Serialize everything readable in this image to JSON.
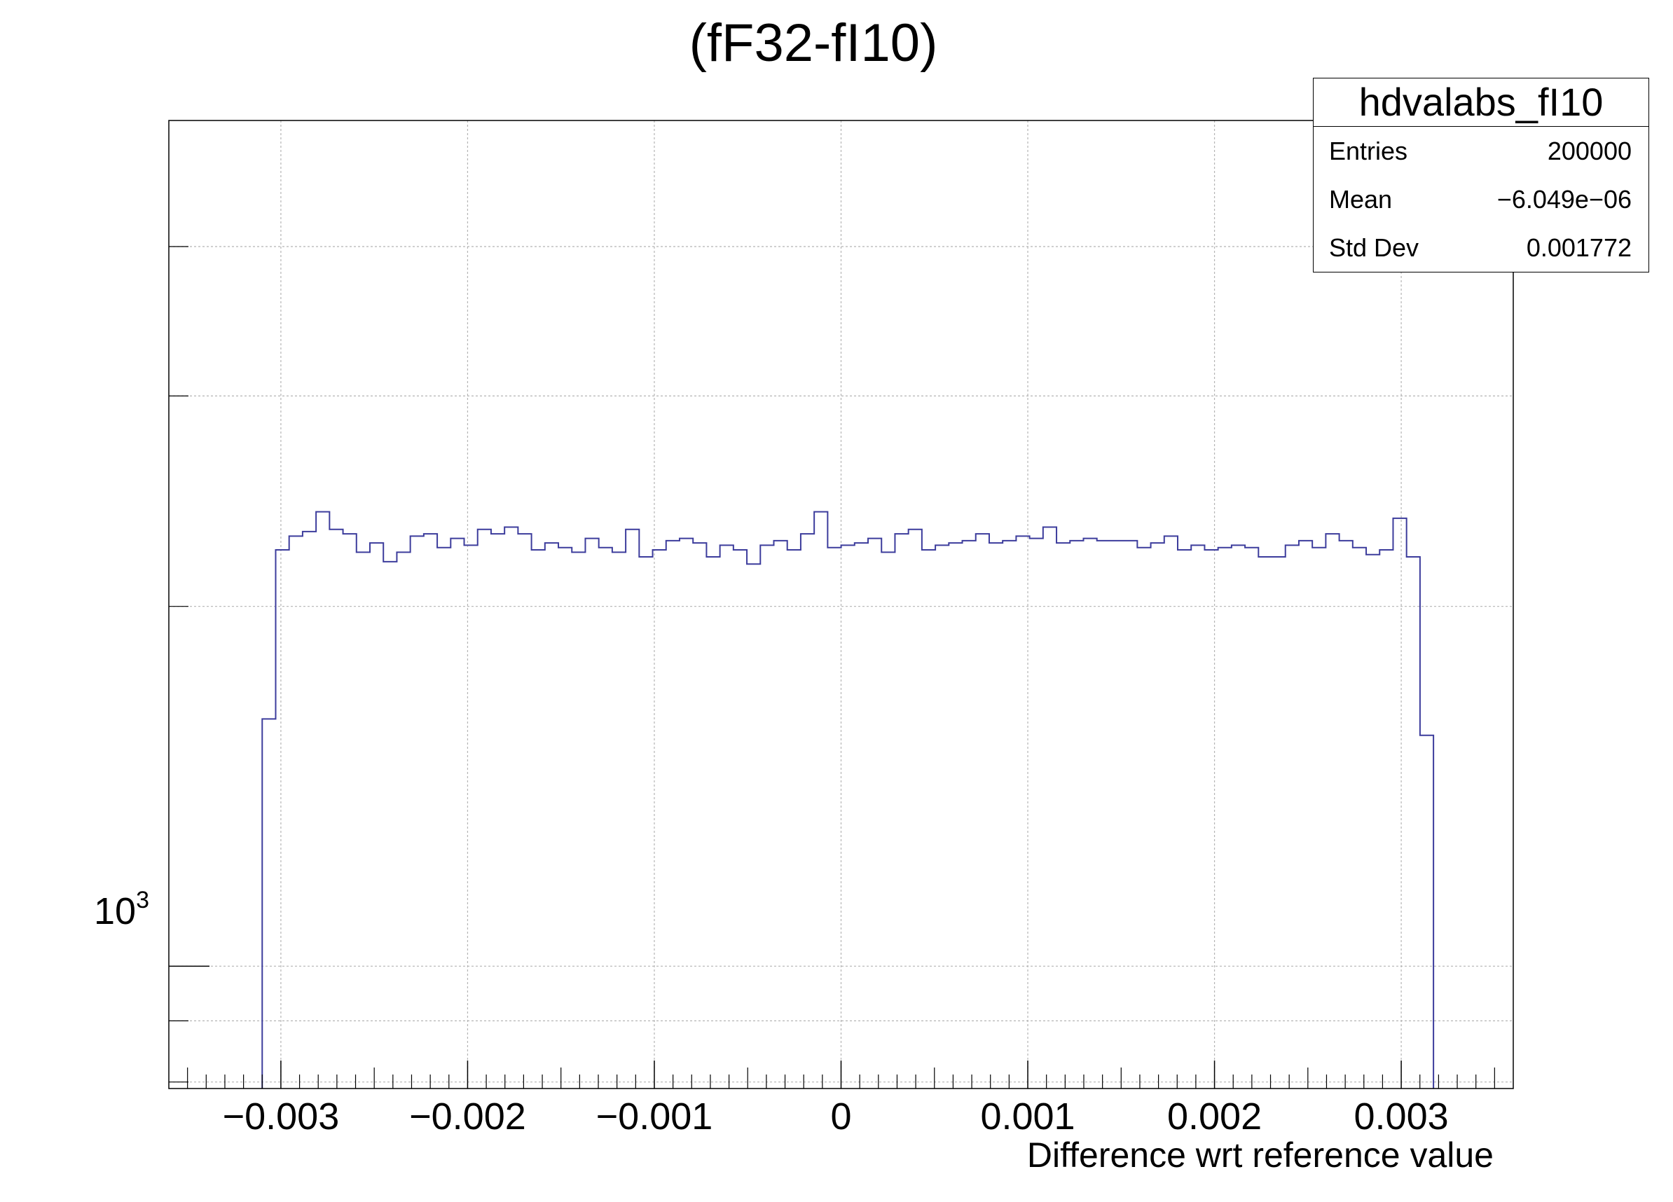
{
  "title": "(fF32-fI10)",
  "stats": {
    "name": "hdvalabs_fI10",
    "rows": [
      {
        "label": "Entries",
        "value": "200000"
      },
      {
        "label": "Mean",
        "value": "−6.049e−06"
      },
      {
        "label": "Std Dev",
        "value": "0.001772"
      }
    ]
  },
  "chart_data": {
    "type": "bar",
    "xlabel": "Difference wrt reference value",
    "ylabel": "",
    "yscale": "log",
    "xlim": [
      -0.0036,
      0.0036
    ],
    "ylim": [
      790,
      5100
    ],
    "grid": true,
    "line_color": "#3c3c9c",
    "x_ticks": [
      {
        "value": -0.003,
        "label": "−0.003"
      },
      {
        "value": -0.002,
        "label": "−0.002"
      },
      {
        "value": -0.001,
        "label": "−0.001"
      },
      {
        "value": 0,
        "label": "0"
      },
      {
        "value": 0.001,
        "label": "0.001"
      },
      {
        "value": 0.002,
        "label": "0.002"
      },
      {
        "value": 0.003,
        "label": "0.003"
      }
    ],
    "y_major_tick": {
      "value": 1000,
      "base": "10",
      "exp": "3"
    },
    "y_minor_ticks": [
      800,
      900,
      2000,
      3000,
      4000
    ],
    "bin_edges_start": -0.0031,
    "bin_width": 7.21e-05,
    "values": [
      1610,
      2230,
      2290,
      2310,
      2400,
      2320,
      2300,
      2220,
      2260,
      2180,
      2220,
      2290,
      2300,
      2240,
      2280,
      2250,
      2320,
      2300,
      2330,
      2300,
      2230,
      2260,
      2240,
      2220,
      2280,
      2240,
      2220,
      2320,
      2200,
      2230,
      2270,
      2280,
      2260,
      2200,
      2250,
      2230,
      2170,
      2250,
      2270,
      2230,
      2300,
      2400,
      2240,
      2250,
      2260,
      2280,
      2220,
      2300,
      2320,
      2230,
      2250,
      2260,
      2270,
      2300,
      2260,
      2270,
      2290,
      2280,
      2330,
      2260,
      2270,
      2280,
      2270,
      2270,
      2270,
      2240,
      2260,
      2290,
      2230,
      2250,
      2230,
      2240,
      2250,
      2240,
      2200,
      2200,
      2250,
      2270,
      2240,
      2300,
      2270,
      2240,
      2210,
      2230,
      2370,
      2200,
      1560
    ]
  }
}
